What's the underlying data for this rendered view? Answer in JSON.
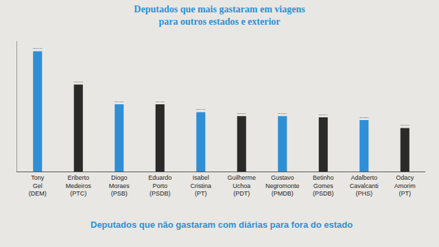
{
  "chart_data": {
    "type": "bar",
    "title": "Deputados que mais gastaram em viagens para outros estados e exterior",
    "categories": [
      "Tony Gel (DEM)",
      "Eriberto Medeiros (PTC)",
      "Diogo Moraes (PSB)",
      "Eduardo Porto (PSDB)",
      "Isabel Cristina (PT)",
      "Guilherme Uchoa (PDT)",
      "Gustavo Negromonte (PMDB)",
      "Betinho Gomes (PSDB)",
      "Adalberto Cavalcanti (PHS)",
      "Odacy Amorim (PT)"
    ],
    "values": [
      27674.55,
      20017.58,
      15468.13,
      15468.13,
      13646.35,
      12738.46,
      12738.46,
      12459.34,
      11828.57,
      10008.79
    ],
    "value_labels": [
      "R$ 27.674,55",
      "R$ 20.017,58",
      "R$ 15.468,13",
      "R$ 15.468,13",
      "R$ 13.646,35",
      "R$ 12.738,46",
      "R$ 12.738,46",
      "R$ 12.459,34",
      "R$ 11.828,57",
      "R$ 10.008,79"
    ],
    "colors": [
      "#2f8fd6",
      "#2a2a2a",
      "#2f8fd6",
      "#2a2a2a",
      "#2f8fd6",
      "#2a2a2a",
      "#2f8fd6",
      "#2a2a2a",
      "#2f8fd6",
      "#2a2a2a"
    ],
    "data_labels": true,
    "tick_labels": "x",
    "grid": false,
    "ylim": [
      0,
      30000
    ],
    "annotations": [
      "Deputados que não gastaram com diárias para fora do estado"
    ]
  }
}
